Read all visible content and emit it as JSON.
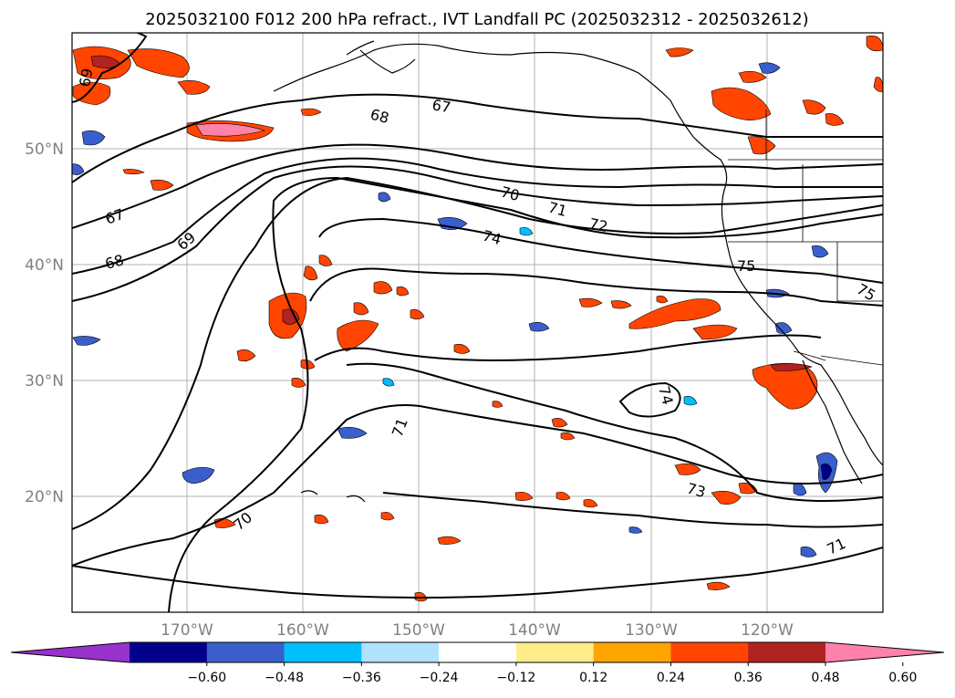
{
  "title": "2025032100 F012 200 hPa refract., IVT Landfall PC (2025032312 - 2025032612)",
  "map": {
    "lat_labels": [
      "50°N",
      "40°N",
      "30°N",
      "20°N"
    ],
    "lon_labels": [
      "170°W",
      "160°W",
      "150°W",
      "140°W",
      "130°W",
      "120°W"
    ],
    "contour_labels": [
      "69",
      "68",
      "67",
      "67",
      "68",
      "69",
      "70",
      "71",
      "72",
      "74",
      "75",
      "75",
      "74",
      "71",
      "70",
      "73",
      "71"
    ]
  },
  "colorbar": {
    "ticks": [
      "−0.60",
      "−0.48",
      "−0.36",
      "−0.24",
      "−0.12",
      "0.12",
      "0.24",
      "0.36",
      "0.48",
      "0.60"
    ],
    "colors": [
      "#9932cc",
      "#00008b",
      "#3a5fcd",
      "#00bfff",
      "#b0e2ff",
      "#ffffff",
      "#ffec8b",
      "#ffa500",
      "#ff4500",
      "#b22222",
      "#ff82ab"
    ]
  },
  "shading_colors": {
    "orange": "#ffa500",
    "red_orange": "#ff4500",
    "dark_red": "#b22222",
    "pink": "#ff82ab",
    "yellow": "#ffec8b",
    "blue": "#3a5fcd",
    "light_blue": "#00bfff",
    "navy": "#00008b"
  }
}
